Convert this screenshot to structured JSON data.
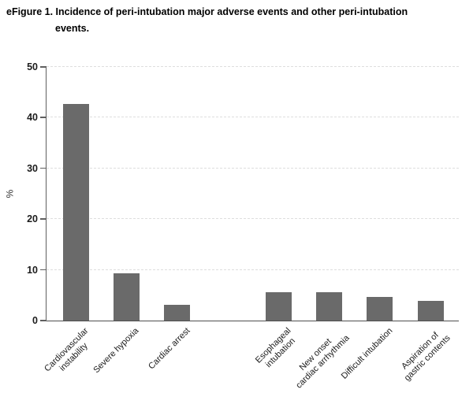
{
  "figure_title": {
    "line1": "eFigure 1. Incidence of peri-intubation major adverse events and other peri-intubation",
    "line2": "events."
  },
  "chart_data": {
    "type": "bar",
    "title": "eFigure 1. Incidence of peri-intubation major adverse events and other peri-intubation events.",
    "xlabel": "",
    "ylabel": "%",
    "ylim": [
      0,
      50
    ],
    "yticks": [
      0,
      10,
      20,
      30,
      40,
      50
    ],
    "grid": true,
    "legend": "none",
    "bar_color": "#6a6a6a",
    "categories": [
      "Cardiovascular\ninstability",
      "Severe hypoxia",
      "Cardiac arrest",
      "Esophageal\nintubation",
      "New onset\ncardiac arrhythmia",
      "Difficult intubation",
      "Aspiration of\ngastric contents"
    ],
    "values": [
      42.7,
      9.3,
      3.1,
      5.6,
      5.6,
      4.7,
      3.9
    ],
    "slots": [
      0,
      1,
      2,
      4,
      5,
      6,
      7
    ],
    "total_slots": 8,
    "gap_after_category_index": 2
  }
}
